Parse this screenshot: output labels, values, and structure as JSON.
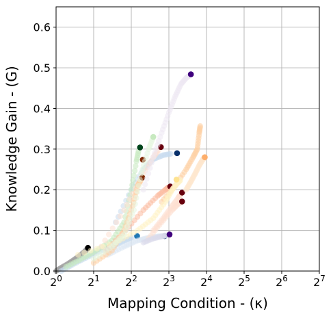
{
  "chart_data": {
    "type": "scatter",
    "title": "",
    "xlabel": "Mapping Condition - (κ)",
    "ylabel": "Knowledge Gain - (G)",
    "x_scale": "log2",
    "xlim": [
      1,
      128
    ],
    "ylim": [
      0,
      0.65
    ],
    "x_ticks": [
      1,
      2,
      4,
      8,
      16,
      32,
      64,
      128
    ],
    "x_tick_labels": [
      "2^0",
      "2^1",
      "2^2",
      "2^3",
      "2^4",
      "2^5",
      "2^6",
      "2^7"
    ],
    "y_ticks": [
      0.0,
      0.1,
      0.2,
      0.3,
      0.4,
      0.5,
      0.6
    ],
    "y_tick_labels": [
      "0.0",
      "0.1",
      "0.2",
      "0.3",
      "0.4",
      "0.5",
      "0.6"
    ],
    "grid": true,
    "legend": "none",
    "series": [
      {
        "color": "#000000",
        "light_color": "#a0a0a0",
        "trail": [
          [
            1.0,
            0.0
          ],
          [
            1.1,
            0.008
          ],
          [
            1.25,
            0.018
          ],
          [
            1.4,
            0.028
          ],
          [
            1.55,
            0.038
          ],
          [
            1.7,
            0.048
          ],
          [
            1.78,
            0.055
          ]
        ],
        "end": [
          1.8,
          0.057
        ]
      },
      {
        "color": "#1f77b4",
        "light_color": "#c6dbef",
        "trail": [
          [
            1.1,
            0.0
          ],
          [
            1.4,
            0.018
          ],
          [
            1.8,
            0.035
          ],
          [
            2.3,
            0.05
          ],
          [
            2.9,
            0.062
          ],
          [
            3.5,
            0.074
          ],
          [
            4.2,
            0.084
          ]
        ],
        "end": [
          4.45,
          0.086
        ]
      },
      {
        "color": "#08306b",
        "light_color": "#c6dbef",
        "trail": [
          [
            3.0,
            0.12
          ],
          [
            4.0,
            0.2
          ],
          [
            5.0,
            0.25
          ],
          [
            6.0,
            0.275
          ],
          [
            7.2,
            0.285
          ],
          [
            8.5,
            0.289
          ]
        ],
        "end": [
          9.3,
          0.29
        ]
      },
      {
        "color": "#08306b",
        "light_color": "#dbe6f3",
        "trail": [
          [
            2.6,
            0.04
          ],
          [
            3.5,
            0.06
          ],
          [
            4.5,
            0.075
          ],
          [
            5.5,
            0.082
          ],
          [
            6.5,
            0.085
          ],
          [
            7.2,
            0.086
          ]
        ],
        "end": [
          7.4,
          0.086
        ]
      },
      {
        "color": "#00441b",
        "light_color": "#c7e9c0",
        "trail": [
          [
            1.2,
            0.01
          ],
          [
            1.6,
            0.03
          ],
          [
            2.1,
            0.05
          ],
          [
            2.8,
            0.075
          ],
          [
            3.5,
            0.12
          ],
          [
            4.0,
            0.2
          ],
          [
            4.4,
            0.27
          ],
          [
            4.6,
            0.3
          ]
        ],
        "end": [
          4.7,
          0.304
        ]
      },
      {
        "color": "#67000d",
        "light_color": "#fee0d2",
        "trail": [
          [
            2.3,
            0.06
          ],
          [
            3.5,
            0.15
          ],
          [
            4.8,
            0.23
          ],
          [
            6.0,
            0.28
          ],
          [
            6.7,
            0.3
          ]
        ],
        "end": [
          6.9,
          0.305
        ]
      },
      {
        "color": "#67000d",
        "light_color": "#fcbba1",
        "trail": [
          [
            2.5,
            0.05
          ],
          [
            3.6,
            0.1
          ],
          [
            5.0,
            0.15
          ],
          [
            6.5,
            0.185
          ],
          [
            7.5,
            0.2
          ],
          [
            8.0,
            0.207
          ]
        ],
        "end": [
          8.2,
          0.208
        ]
      },
      {
        "color": "#67000d",
        "light_color": "#fee0d2",
        "trail": [
          [
            6.0,
            0.1
          ],
          [
            7.2,
            0.13
          ],
          [
            8.5,
            0.16
          ],
          [
            9.5,
            0.18
          ],
          [
            10.0,
            0.19
          ]
        ],
        "end": [
          10.2,
          0.193
        ]
      },
      {
        "color": "#67000d",
        "light_color": "#fee0d2",
        "trail": [
          [
            5.5,
            0.08
          ],
          [
            7.0,
            0.12
          ],
          [
            8.5,
            0.15
          ],
          [
            9.5,
            0.165
          ],
          [
            10.0,
            0.17
          ]
        ],
        "end": [
          10.2,
          0.171
        ]
      },
      {
        "color": "#7f2704",
        "light_color": "#fdd0a2",
        "trail": [
          [
            2.0,
            0.02
          ],
          [
            2.8,
            0.05
          ],
          [
            3.5,
            0.1
          ],
          [
            4.1,
            0.16
          ],
          [
            4.5,
            0.21
          ],
          [
            4.8,
            0.225
          ]
        ],
        "end": [
          4.9,
          0.23
        ]
      },
      {
        "color": "#7f2704",
        "light_color": "#fdd0a2",
        "trail": [
          [
            7.0,
            0.17
          ],
          [
            9.0,
            0.21
          ],
          [
            11.0,
            0.25
          ],
          [
            12.5,
            0.28
          ],
          [
            13.5,
            0.3
          ],
          [
            14.0,
            0.34
          ],
          [
            14.3,
            0.36
          ]
        ],
        "end": [
          4.95,
          0.274
        ]
      },
      {
        "color": "#fee391",
        "light_color": "#fff3c4",
        "trail": [
          [
            1.5,
            0.04
          ],
          [
            3.0,
            0.07
          ],
          [
            4.5,
            0.1
          ],
          [
            6.0,
            0.13
          ],
          [
            7.5,
            0.17
          ],
          [
            8.5,
            0.2
          ],
          [
            9.3,
            0.215
          ],
          [
            10.0,
            0.225
          ]
        ],
        "end": [
          9.2,
          0.225
        ]
      },
      {
        "color": "#fdae6b",
        "light_color": "#fde5cc",
        "trail": [
          [
            11.0,
            0.2
          ],
          [
            12.0,
            0.22
          ],
          [
            13.0,
            0.24
          ],
          [
            14.0,
            0.26
          ],
          [
            15.0,
            0.275
          ],
          [
            15.5,
            0.28
          ]
        ],
        "end": [
          15.5,
          0.28
        ]
      },
      {
        "color": "#c7e9c0",
        "light_color": "#e5f5e0",
        "trail": [
          [
            2.0,
            0.03
          ],
          [
            2.8,
            0.06
          ],
          [
            3.5,
            0.09
          ],
          [
            4.2,
            0.15
          ],
          [
            4.8,
            0.24
          ],
          [
            5.5,
            0.3
          ],
          [
            6.0,
            0.33
          ]
        ],
        "end": [
          6.0,
          0.33
        ]
      },
      {
        "color": "#3f007d",
        "light_color": "#ece7f2",
        "trail": [
          [
            5.0,
            0.2
          ],
          [
            6.0,
            0.28
          ],
          [
            7.0,
            0.34
          ],
          [
            8.0,
            0.39
          ],
          [
            9.0,
            0.43
          ],
          [
            10.0,
            0.46
          ],
          [
            11.0,
            0.475
          ],
          [
            11.8,
            0.482
          ]
        ],
        "end": [
          12.0,
          0.484
        ]
      },
      {
        "color": "#3f007d",
        "light_color": "#dadaeb",
        "trail": [
          [
            5.0,
            0.07
          ],
          [
            6.0,
            0.08
          ],
          [
            7.0,
            0.085
          ],
          [
            7.8,
            0.088
          ]
        ],
        "end": [
          8.1,
          0.09
        ]
      }
    ]
  }
}
